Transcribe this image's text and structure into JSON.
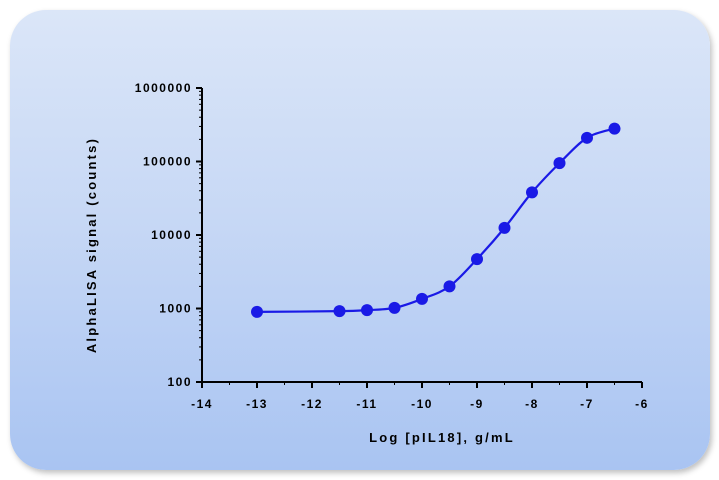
{
  "chart_data": {
    "type": "scatter",
    "title": "",
    "xlabel": "Log [pIL18], g/mL",
    "ylabel": "AlphaLISA signal (counts)",
    "xlim": [
      -14,
      -6
    ],
    "ylim": [
      100,
      1000000
    ],
    "yscale": "log",
    "x_ticks": [
      -14,
      -13,
      -12,
      -11,
      -10,
      -9,
      -8,
      -7,
      -6
    ],
    "x_tick_labels": [
      "-14",
      "-13",
      "-12",
      "-11",
      "-10",
      "-9",
      "-8",
      "-7",
      "-6"
    ],
    "y_ticks": [
      100,
      1000,
      10000,
      100000,
      1000000
    ],
    "y_tick_labels": [
      "100",
      "1000",
      "10000",
      "100000",
      "1000000"
    ],
    "grid": false,
    "series": [
      {
        "color": "#1a1ae6",
        "fit": "sigmoidal",
        "x": [
          -13,
          -11.5,
          -11,
          -10.5,
          -10,
          -9.5,
          -9,
          -8.5,
          -8,
          -7.5,
          -7,
          -6.5
        ],
        "y": [
          900,
          920,
          950,
          1020,
          1350,
          2000,
          4700,
          12500,
          38000,
          95000,
          210000,
          280000
        ]
      }
    ]
  }
}
